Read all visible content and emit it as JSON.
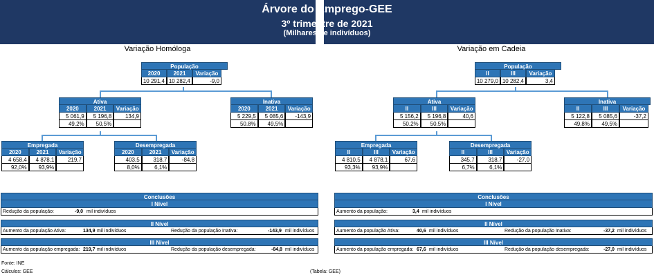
{
  "title": "Árvore do Emprego-GEE",
  "subtitle": "3º trimestre de 2021",
  "units": "(Milhares de indivíduos)",
  "left": {
    "section": "Variação Homóloga",
    "populacao": {
      "label": "População",
      "h1": "2020",
      "h2": "2021",
      "h3": "Variação",
      "v1": "10 291,4",
      "v2": "10 282,4",
      "v3": "-9,0"
    },
    "ativa": {
      "label": "Ativa",
      "h1": "2020",
      "h2": "2021",
      "h3": "Variação",
      "v1": "5 061,9",
      "v2": "5 196,8",
      "v3": "134,9",
      "p1": "49,2%",
      "p2": "50,5%"
    },
    "inativa": {
      "label": "Inativa",
      "h1": "2020",
      "h2": "2021",
      "h3": "Variação",
      "v1": "5 229,5",
      "v2": "5 085,6",
      "v3": "-143,9",
      "p1": "50,8%",
      "p2": "49,5%"
    },
    "empregada": {
      "label": "Empregada",
      "h1": "2020",
      "h2": "2021",
      "h3": "Variação",
      "v1": "4 658,4",
      "v2": "4 878,1",
      "v3": "219,7",
      "p1": "92,0%",
      "p2": "93,9%"
    },
    "desempregada": {
      "label": "Desempregada",
      "h1": "2020",
      "h2": "2021",
      "h3": "Variação",
      "v1": "403,5",
      "v2": "318,7",
      "v3": "-84,8",
      "p1": "8,0%",
      "p2": "6,1%"
    },
    "conclusoes": {
      "title": "Conclusões",
      "n1": "I Nível",
      "n2": "II Nível",
      "n3": "III Nível",
      "r1_text": "Redução da  população:",
      "r1_val": "-9,0",
      "r1_unit": "mil indivíduos",
      "r2a_text": "Aumento da população Ativa:",
      "r2a_val": "134,9",
      "r2a_unit": "mil indivíduos",
      "r2b_text": "Redução da população Inativa:",
      "r2b_val": "-143,9",
      "r2b_unit": "mil indivíduos",
      "r3a_text": "Aumento da população empregada:",
      "r3a_val": "219,7",
      "r3a_unit": "mil indivíduos",
      "r3b_text": "Redução da população desempregada:",
      "r3b_val": "-84,8",
      "r3b_unit": "mil indivíduos"
    }
  },
  "right": {
    "section": "Variação em Cadeia",
    "populacao": {
      "label": "População",
      "h1": "II",
      "h2": "III",
      "h3": "Variação",
      "v1": "10 279,0",
      "v2": "10 282,4",
      "v3": "3,4"
    },
    "ativa": {
      "label": "Ativa",
      "h1": "II",
      "h2": "III",
      "h3": "Variação",
      "v1": "5 156,2",
      "v2": "5 196,8",
      "v3": "40,6",
      "p1": "50,2%",
      "p2": "50,5%"
    },
    "inativa": {
      "label": "Inativa",
      "h1": "II",
      "h2": "III",
      "h3": "Variação",
      "v1": "5 122,8",
      "v2": "5 085,6",
      "v3": "-37,2",
      "p1": "49,8%",
      "p2": "49,5%"
    },
    "empregada": {
      "label": "Empregada",
      "h1": "II",
      "h2": "III",
      "h3": "Variação",
      "v1": "4 810,5",
      "v2": "4 878,1",
      "v3": "67,6",
      "p1": "93,3%",
      "p2": "93,9%"
    },
    "desempregada": {
      "label": "Desempregada",
      "h1": "II",
      "h2": "III",
      "h3": "Variação",
      "v1": "345,7",
      "v2": "318,7",
      "v3": "-27,0",
      "p1": "6,7%",
      "p2": "6,1%"
    },
    "conclusoes": {
      "title": "Conclusões",
      "n1": "I Nível",
      "n2": "II Nível",
      "n3": "III Nível",
      "r1_text": "Aumento da  população:",
      "r1_val": "3,4",
      "r1_unit": "mil indivíduos",
      "r2a_text": "Aumento da população Ativa:",
      "r2a_val": "40,6",
      "r2a_unit": "mil indivíduos",
      "r2b_text": "Redução da população Inativa:",
      "r2b_val": "-37,2",
      "r2b_unit": "mil indivíduos",
      "r3a_text": "Aumento da população empregada:",
      "r3a_val": "67,6",
      "r3a_unit": "mil indivíduos",
      "r3b_text": "Redução da população desempregada:",
      "r3b_val": "-27,0",
      "r3b_unit": "mil indivíduos"
    }
  },
  "footer": {
    "fonte": "Fonte: INE",
    "calculos": "Cálculos: GEE",
    "tabela": "(Tabela: GEE)"
  },
  "colors": {
    "banner": "#1f3864",
    "header": "#2e75b6",
    "connector": "#5b9bd5"
  }
}
